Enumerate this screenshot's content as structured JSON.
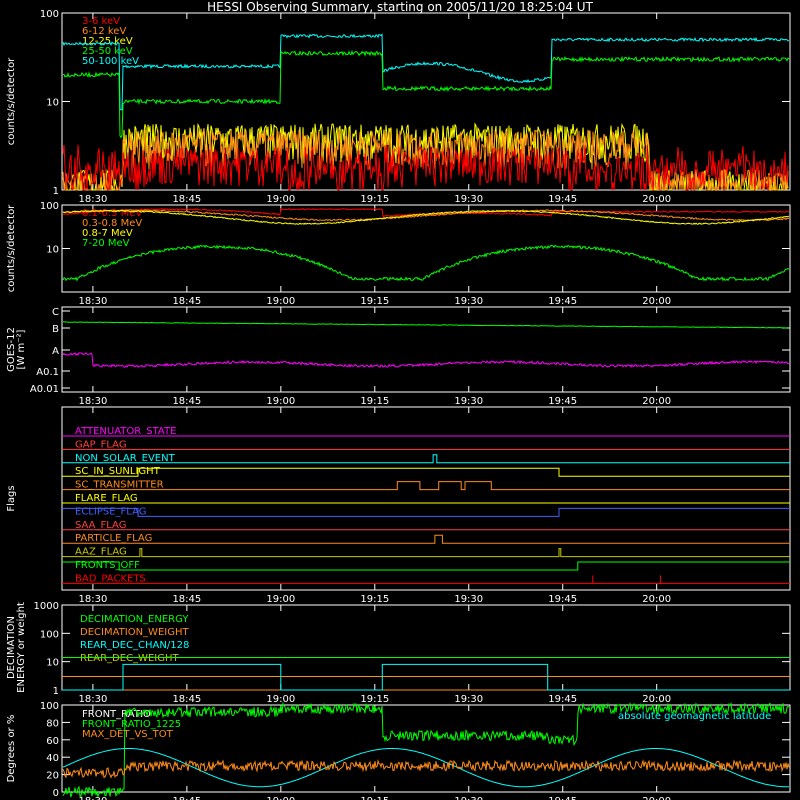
{
  "title": "HESSI Observing Summary, starting on 2005/11/20 18:25:04 UT",
  "time_ticks": [
    "18:30",
    "18:45",
    "19:00",
    "19:15",
    "19:30",
    "19:45",
    "20:00"
  ],
  "chart_data": [
    {
      "type": "line",
      "ylabel": "counts/s/detector",
      "yscale": "log",
      "ylim": [
        1,
        100
      ],
      "y_ticks": [
        "1",
        "10",
        "100"
      ],
      "series": [
        {
          "name": "3-6 keV",
          "color": "#ff0000"
        },
        {
          "name": "6-12 keV",
          "color": "#ff8c1a"
        },
        {
          "name": "12-25 keV",
          "color": "#ffff00"
        },
        {
          "name": "25-50 keV",
          "color": "#00ff00"
        },
        {
          "name": "50-100 keV",
          "color": "#00ffff"
        }
      ]
    },
    {
      "type": "line",
      "ylabel": "counts/s/detector",
      "yscale": "log",
      "ylim": [
        1,
        100
      ],
      "y_ticks": [
        "10",
        "100"
      ],
      "series": [
        {
          "name": "0.1-0.3 MeV",
          "color": "#ff0000"
        },
        {
          "name": "0.3-0.8 MeV",
          "color": "#ff8c1a"
        },
        {
          "name": "0.8-7 MeV",
          "color": "#ffff00"
        },
        {
          "name": "7-20 MeV",
          "color": "#00ff00"
        }
      ]
    },
    {
      "type": "line",
      "ylabel": "GOES-12",
      "ylabel2": "[W m⁻²]",
      "y_ticks": [
        "C",
        "B",
        "A",
        "A0.1",
        "A0.01"
      ]
    },
    {
      "type": "line",
      "ylabel": "Flags",
      "flags": [
        {
          "name": "ATTENUATOR_STATE",
          "color": "#ff00ff"
        },
        {
          "name": "GAP_FLAG",
          "color": "#ff4040"
        },
        {
          "name": "NON_SOLAR_EVENT",
          "color": "#00ffff"
        },
        {
          "name": "SC_IN_SUNLIGHT",
          "color": "#ffff00"
        },
        {
          "name": "SC_TRANSMITTER",
          "color": "#ff8c1a"
        },
        {
          "name": "FLARE_FLAG",
          "color": "#ffff00"
        },
        {
          "name": "ECLIPSE_FLAG",
          "color": "#4060ff"
        },
        {
          "name": "SAA_FLAG",
          "color": "#ff4040"
        },
        {
          "name": "PARTICLE_FLAG",
          "color": "#ff8c1a"
        },
        {
          "name": "AAZ_FLAG",
          "color": "#c8c800"
        },
        {
          "name": "FRONTS_OFF",
          "color": "#00ff00"
        },
        {
          "name": "BAD_PACKETS",
          "color": "#ff0000"
        }
      ]
    },
    {
      "type": "line",
      "ylabel": "DECIMATION",
      "ylabel2": "ENERGY or weight",
      "yscale": "log",
      "ylim": [
        1,
        1000
      ],
      "y_ticks": [
        "1",
        "10",
        "100",
        "1000"
      ],
      "series": [
        {
          "name": "DECIMATION_ENERGY",
          "color": "#00ff00"
        },
        {
          "name": "DECIMATION_WEIGHT",
          "color": "#ff8c1a"
        },
        {
          "name": "REAR_DEC_CHAN/128",
          "color": "#00ffff"
        },
        {
          "name": "REAR_DEC_WEIGHT",
          "color": "#c8c800"
        }
      ]
    },
    {
      "type": "line",
      "ylabel": "Degrees or %",
      "ylim": [
        0,
        100
      ],
      "y_ticks": [
        "0",
        "20",
        "40",
        "60",
        "80",
        "100"
      ],
      "annotation": "absolute geomagnetic latitude",
      "series": [
        {
          "name": "FRONT_RATIO",
          "color": "#ffffff"
        },
        {
          "name": "FRONT_RATIO_1225",
          "color": "#00ff00"
        },
        {
          "name": "MAX_DET_VS_TOT",
          "color": "#ff8c1a"
        }
      ]
    }
  ]
}
